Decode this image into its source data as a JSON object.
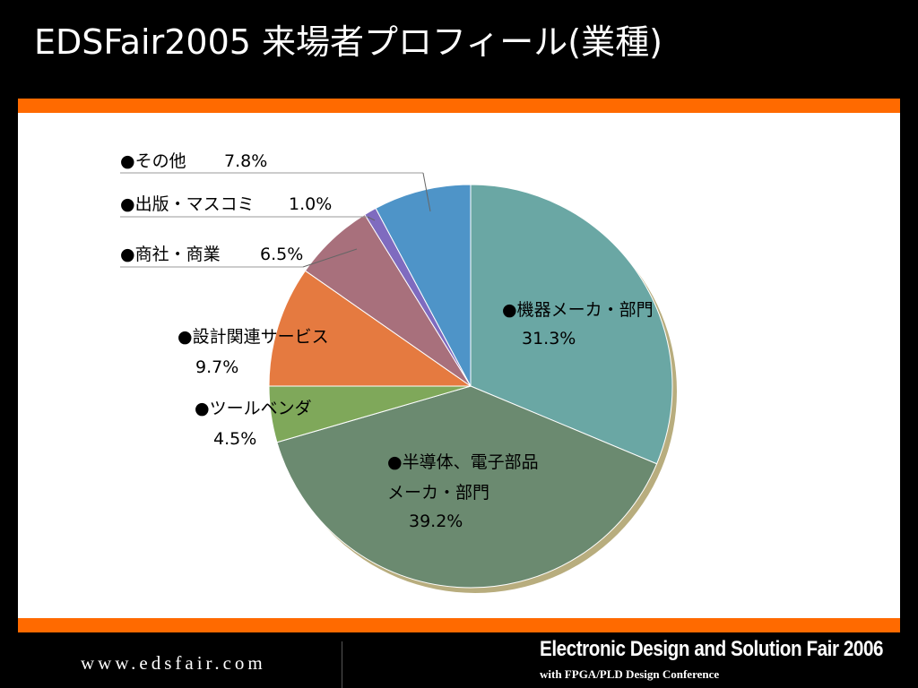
{
  "slide": {
    "title": "EDSFair2005 来場者プロフィール(業種)"
  },
  "footer": {
    "url": "www.edsfair.com",
    "fair_name": "Electronic Design and Solution Fair 2006",
    "conference": "with FPGA/PLD Design Conference"
  },
  "chart_data": {
    "type": "pie",
    "title": "",
    "unit": "%",
    "slices": [
      {
        "label_lines": [
          "●機器メーカ・部門"
        ],
        "value_text": "31.3%",
        "value": 31.3,
        "color": "#6aa7a4"
      },
      {
        "label_lines": [
          "●半導体、電子部品",
          "メーカ・部門"
        ],
        "value_text": "39.2%",
        "value": 39.2,
        "color": "#6b8a70"
      },
      {
        "label_lines": [
          "●ツールベンダ"
        ],
        "value_text": "4.5%",
        "value": 4.5,
        "color": "#7fa85a"
      },
      {
        "label_lines": [
          "●設計関連サービス"
        ],
        "value_text": "9.7%",
        "value": 9.7,
        "color": "#e57a40"
      },
      {
        "label_lines": [
          "●商社・商業"
        ],
        "value_text": "6.5%",
        "value": 6.5,
        "color": "#a8707c"
      },
      {
        "label_lines": [
          "●出版・マスコミ"
        ],
        "value_text": "1.0%",
        "value": 1.0,
        "color": "#7f6bbf"
      },
      {
        "label_lines": [
          "●その他"
        ],
        "value_text": "7.8%",
        "value": 7.8,
        "color": "#4e94c8"
      }
    ],
    "shadow_color": "#b8ad7e"
  }
}
